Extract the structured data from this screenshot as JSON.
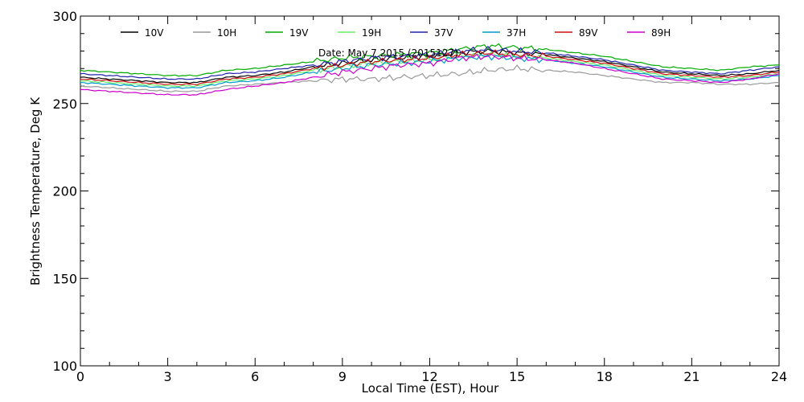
{
  "chart_data": {
    "type": "line",
    "title": "",
    "annotation": "Date: May  7 2015 (2015127)",
    "xlabel": "Local Time (EST), Hour",
    "ylabel": "Brightness Temperature, Deg  K",
    "xlim": [
      0,
      24
    ],
    "ylim": [
      100,
      300
    ],
    "x_ticks": [
      0,
      3,
      6,
      9,
      12,
      15,
      18,
      21,
      24
    ],
    "y_ticks": [
      100,
      150,
      200,
      250,
      300
    ],
    "grid": false,
    "legend_position": "top",
    "x": [
      0,
      1,
      2,
      3,
      4,
      5,
      6,
      7,
      8,
      9,
      10,
      11,
      12,
      13,
      14,
      15,
      16,
      17,
      18,
      19,
      20,
      21,
      22,
      23,
      24
    ],
    "series": [
      {
        "name": "10V",
        "color": "#000000",
        "values": [
          265,
          264,
          263,
          262,
          262,
          265,
          266,
          268,
          271,
          273,
          275,
          276,
          277,
          279,
          280,
          279,
          278,
          276,
          274,
          271,
          268,
          267,
          266,
          267,
          269
        ]
      },
      {
        "name": "10H",
        "color": "#999999",
        "values": [
          260,
          259,
          258,
          257,
          257,
          260,
          261,
          262,
          263,
          264,
          264,
          265,
          266,
          267,
          269,
          270,
          269,
          268,
          266,
          264,
          262,
          262,
          261,
          261,
          262
        ]
      },
      {
        "name": "19V",
        "color": "#00aa00",
        "values": [
          269,
          268,
          267,
          266,
          266,
          269,
          270,
          272,
          274,
          276,
          277,
          278,
          279,
          281,
          283,
          282,
          281,
          279,
          277,
          274,
          271,
          270,
          269,
          271,
          272
        ]
      },
      {
        "name": "19H",
        "color": "#66ee66",
        "values": [
          263,
          262,
          261,
          260,
          260,
          263,
          264,
          266,
          269,
          271,
          273,
          274,
          275,
          277,
          278,
          277,
          276,
          274,
          272,
          269,
          266,
          265,
          264,
          265,
          267
        ]
      },
      {
        "name": "37V",
        "color": "#2222aa",
        "values": [
          267,
          266,
          265,
          264,
          264,
          267,
          268,
          270,
          272,
          274,
          276,
          277,
          278,
          280,
          281,
          280,
          279,
          277,
          275,
          272,
          269,
          268,
          267,
          269,
          271
        ]
      },
      {
        "name": "37H",
        "color": "#0099cc",
        "values": [
          262,
          261,
          260,
          259,
          259,
          262,
          263,
          265,
          268,
          270,
          272,
          273,
          274,
          276,
          277,
          276,
          275,
          273,
          271,
          268,
          265,
          264,
          263,
          264,
          266
        ]
      },
      {
        "name": "89V",
        "color": "#cc1111",
        "values": [
          264,
          263,
          262,
          261,
          261,
          264,
          265,
          267,
          270,
          272,
          274,
          275,
          276,
          278,
          279,
          278,
          277,
          275,
          273,
          270,
          267,
          266,
          265,
          266,
          268
        ]
      },
      {
        "name": "89H",
        "color": "#cc00cc",
        "values": [
          258,
          257,
          256,
          255,
          255,
          258,
          260,
          262,
          265,
          268,
          270,
          272,
          273,
          276,
          277,
          276,
          275,
          273,
          270,
          267,
          264,
          263,
          262,
          264,
          267
        ]
      }
    ]
  }
}
